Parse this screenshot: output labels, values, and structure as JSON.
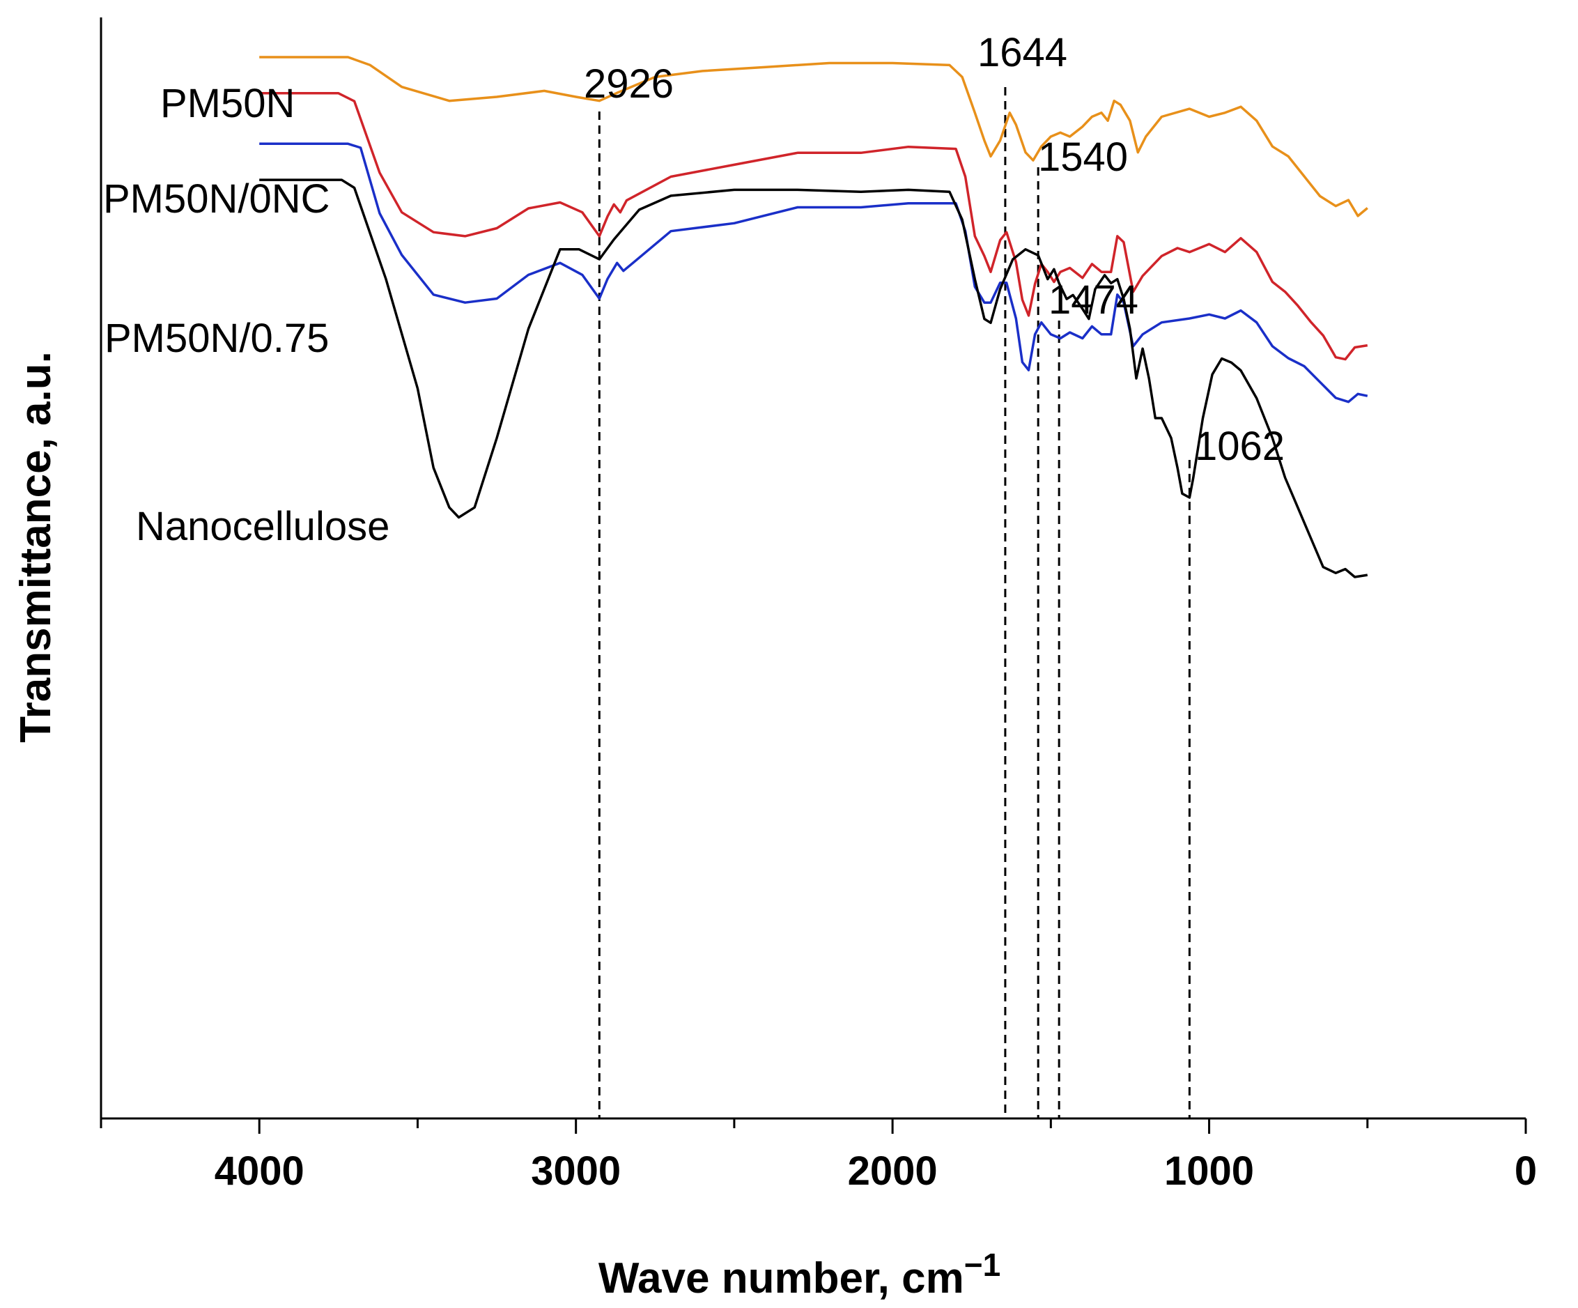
{
  "chart_data": {
    "type": "line",
    "title": "",
    "xlabel": "Wave number, cm",
    "xlabel_superscript": "−1",
    "ylabel": "Transmittance, a.u.",
    "xlim": [
      4500,
      0
    ],
    "x_ticks": [
      4000,
      3000,
      2000,
      1000,
      0
    ],
    "y_tick_labels": false,
    "grid": false,
    "reference_lines": [
      {
        "wavenumber": 2926,
        "label": "2926"
      },
      {
        "wavenumber": 1644,
        "label": "1644"
      },
      {
        "wavenumber": 1540,
        "label": "1540"
      },
      {
        "wavenumber": 1474,
        "label": "1474"
      },
      {
        "wavenumber": 1062,
        "label": "1062"
      }
    ],
    "series": [
      {
        "name": "PM50N",
        "color": "#E8901A",
        "offset": 0.84,
        "points": [
          [
            4000,
            0.0
          ],
          [
            3720,
            0.0
          ],
          [
            3650,
            -0.04
          ],
          [
            3550,
            -0.15
          ],
          [
            3400,
            -0.22
          ],
          [
            3250,
            -0.2
          ],
          [
            3100,
            -0.17
          ],
          [
            3000,
            -0.2
          ],
          [
            2926,
            -0.22
          ],
          [
            2870,
            -0.18
          ],
          [
            2750,
            -0.1
          ],
          [
            2600,
            -0.07
          ],
          [
            2400,
            -0.05
          ],
          [
            2200,
            -0.03
          ],
          [
            2000,
            -0.03
          ],
          [
            1820,
            -0.04
          ],
          [
            1780,
            -0.1
          ],
          [
            1740,
            -0.28
          ],
          [
            1710,
            -0.42
          ],
          [
            1690,
            -0.5
          ],
          [
            1660,
            -0.42
          ],
          [
            1630,
            -0.28
          ],
          [
            1610,
            -0.34
          ],
          [
            1580,
            -0.48
          ],
          [
            1556,
            -0.52
          ],
          [
            1530,
            -0.45
          ],
          [
            1500,
            -0.4
          ],
          [
            1470,
            -0.38
          ],
          [
            1440,
            -0.4
          ],
          [
            1400,
            -0.35
          ],
          [
            1370,
            -0.3
          ],
          [
            1340,
            -0.28
          ],
          [
            1320,
            -0.32
          ],
          [
            1300,
            -0.22
          ],
          [
            1280,
            -0.24
          ],
          [
            1250,
            -0.32
          ],
          [
            1225,
            -0.48
          ],
          [
            1200,
            -0.4
          ],
          [
            1150,
            -0.3
          ],
          [
            1062,
            -0.26
          ],
          [
            1000,
            -0.3
          ],
          [
            950,
            -0.28
          ],
          [
            900,
            -0.25
          ],
          [
            850,
            -0.32
          ],
          [
            800,
            -0.45
          ],
          [
            750,
            -0.5
          ],
          [
            700,
            -0.6
          ],
          [
            650,
            -0.7
          ],
          [
            600,
            -0.75
          ],
          [
            560,
            -0.72
          ],
          [
            530,
            -0.8
          ],
          [
            500,
            -0.76
          ]
        ]
      },
      {
        "name": "PM50N/0NC",
        "color": "#D0242A",
        "offset": 0.74,
        "points": [
          [
            4000,
            0.0
          ],
          [
            3750,
            0.0
          ],
          [
            3700,
            -0.04
          ],
          [
            3620,
            -0.4
          ],
          [
            3550,
            -0.6
          ],
          [
            3450,
            -0.7
          ],
          [
            3350,
            -0.72
          ],
          [
            3250,
            -0.68
          ],
          [
            3150,
            -0.58
          ],
          [
            3050,
            -0.55
          ],
          [
            2980,
            -0.6
          ],
          [
            2926,
            -0.72
          ],
          [
            2900,
            -0.62
          ],
          [
            2880,
            -0.56
          ],
          [
            2860,
            -0.6
          ],
          [
            2840,
            -0.54
          ],
          [
            2700,
            -0.42
          ],
          [
            2500,
            -0.36
          ],
          [
            2300,
            -0.3
          ],
          [
            2100,
            -0.3
          ],
          [
            1950,
            -0.27
          ],
          [
            1800,
            -0.28
          ],
          [
            1770,
            -0.42
          ],
          [
            1740,
            -0.72
          ],
          [
            1710,
            -0.82
          ],
          [
            1690,
            -0.9
          ],
          [
            1660,
            -0.74
          ],
          [
            1640,
            -0.7
          ],
          [
            1610,
            -0.85
          ],
          [
            1590,
            -1.04
          ],
          [
            1570,
            -1.12
          ],
          [
            1550,
            -0.96
          ],
          [
            1530,
            -0.86
          ],
          [
            1510,
            -0.9
          ],
          [
            1490,
            -0.95
          ],
          [
            1470,
            -0.9
          ],
          [
            1440,
            -0.88
          ],
          [
            1400,
            -0.93
          ],
          [
            1370,
            -0.86
          ],
          [
            1340,
            -0.9
          ],
          [
            1310,
            -0.9
          ],
          [
            1290,
            -0.72
          ],
          [
            1270,
            -0.75
          ],
          [
            1240,
            -1.0
          ],
          [
            1210,
            -0.92
          ],
          [
            1150,
            -0.82
          ],
          [
            1100,
            -0.78
          ],
          [
            1062,
            -0.8
          ],
          [
            1000,
            -0.76
          ],
          [
            950,
            -0.8
          ],
          [
            900,
            -0.73
          ],
          [
            850,
            -0.8
          ],
          [
            800,
            -0.95
          ],
          [
            760,
            -1.0
          ],
          [
            720,
            -1.07
          ],
          [
            680,
            -1.15
          ],
          [
            640,
            -1.22
          ],
          [
            600,
            -1.33
          ],
          [
            570,
            -1.34
          ],
          [
            540,
            -1.28
          ],
          [
            500,
            -1.27
          ]
        ]
      },
      {
        "name": "PM50N/0.75",
        "color": "#1A2FC8",
        "offset": 0.6,
        "points": [
          [
            4000,
            0.0
          ],
          [
            3800,
            0.0
          ],
          [
            3720,
            0.0
          ],
          [
            3680,
            -0.02
          ],
          [
            3620,
            -0.35
          ],
          [
            3550,
            -0.56
          ],
          [
            3450,
            -0.76
          ],
          [
            3350,
            -0.8
          ],
          [
            3250,
            -0.78
          ],
          [
            3150,
            -0.66
          ],
          [
            3050,
            -0.6
          ],
          [
            2980,
            -0.66
          ],
          [
            2926,
            -0.78
          ],
          [
            2900,
            -0.68
          ],
          [
            2870,
            -0.6
          ],
          [
            2850,
            -0.64
          ],
          [
            2820,
            -0.6
          ],
          [
            2700,
            -0.44
          ],
          [
            2500,
            -0.4
          ],
          [
            2300,
            -0.32
          ],
          [
            2100,
            -0.32
          ],
          [
            1950,
            -0.3
          ],
          [
            1800,
            -0.3
          ],
          [
            1770,
            -0.44
          ],
          [
            1740,
            -0.72
          ],
          [
            1710,
            -0.8
          ],
          [
            1690,
            -0.8
          ],
          [
            1660,
            -0.7
          ],
          [
            1640,
            -0.7
          ],
          [
            1610,
            -0.88
          ],
          [
            1590,
            -1.1
          ],
          [
            1570,
            -1.14
          ],
          [
            1550,
            -0.96
          ],
          [
            1530,
            -0.9
          ],
          [
            1500,
            -0.96
          ],
          [
            1470,
            -0.98
          ],
          [
            1440,
            -0.95
          ],
          [
            1400,
            -0.98
          ],
          [
            1370,
            -0.92
          ],
          [
            1340,
            -0.96
          ],
          [
            1310,
            -0.96
          ],
          [
            1290,
            -0.76
          ],
          [
            1270,
            -0.8
          ],
          [
            1240,
            -1.02
          ],
          [
            1210,
            -0.96
          ],
          [
            1150,
            -0.9
          ],
          [
            1062,
            -0.88
          ],
          [
            1000,
            -0.86
          ],
          [
            950,
            -0.88
          ],
          [
            900,
            -0.84
          ],
          [
            850,
            -0.9
          ],
          [
            800,
            -1.02
          ],
          [
            750,
            -1.08
          ],
          [
            700,
            -1.12
          ],
          [
            650,
            -1.2
          ],
          [
            600,
            -1.28
          ],
          [
            560,
            -1.3
          ],
          [
            530,
            -1.26
          ],
          [
            500,
            -1.27
          ]
        ]
      },
      {
        "name": "Nanocellulose",
        "color": "#000000",
        "offset": 0.5,
        "points": [
          [
            4000,
            0.0
          ],
          [
            3740,
            0.0
          ],
          [
            3700,
            -0.04
          ],
          [
            3600,
            -0.5
          ],
          [
            3500,
            -1.05
          ],
          [
            3450,
            -1.45
          ],
          [
            3400,
            -1.65
          ],
          [
            3370,
            -1.7
          ],
          [
            3320,
            -1.65
          ],
          [
            3250,
            -1.3
          ],
          [
            3150,
            -0.75
          ],
          [
            3050,
            -0.35
          ],
          [
            2990,
            -0.35
          ],
          [
            2926,
            -0.4
          ],
          [
            2880,
            -0.3
          ],
          [
            2800,
            -0.15
          ],
          [
            2700,
            -0.08
          ],
          [
            2500,
            -0.05
          ],
          [
            2300,
            -0.05
          ],
          [
            2100,
            -0.06
          ],
          [
            1950,
            -0.05
          ],
          [
            1820,
            -0.06
          ],
          [
            1780,
            -0.2
          ],
          [
            1740,
            -0.5
          ],
          [
            1710,
            -0.7
          ],
          [
            1690,
            -0.72
          ],
          [
            1660,
            -0.55
          ],
          [
            1620,
            -0.4
          ],
          [
            1580,
            -0.35
          ],
          [
            1540,
            -0.38
          ],
          [
            1510,
            -0.5
          ],
          [
            1490,
            -0.45
          ],
          [
            1474,
            -0.52
          ],
          [
            1450,
            -0.6
          ],
          [
            1430,
            -0.58
          ],
          [
            1400,
            -0.65
          ],
          [
            1380,
            -0.7
          ],
          [
            1360,
            -0.55
          ],
          [
            1330,
            -0.48
          ],
          [
            1310,
            -0.52
          ],
          [
            1290,
            -0.5
          ],
          [
            1270,
            -0.6
          ],
          [
            1250,
            -0.75
          ],
          [
            1230,
            -1.0
          ],
          [
            1210,
            -0.85
          ],
          [
            1190,
            -1.0
          ],
          [
            1170,
            -1.2
          ],
          [
            1150,
            -1.2
          ],
          [
            1120,
            -1.3
          ],
          [
            1100,
            -1.45
          ],
          [
            1085,
            -1.58
          ],
          [
            1062,
            -1.6
          ],
          [
            1050,
            -1.5
          ],
          [
            1020,
            -1.2
          ],
          [
            990,
            -0.98
          ],
          [
            960,
            -0.9
          ],
          [
            930,
            -0.92
          ],
          [
            900,
            -0.96
          ],
          [
            850,
            -1.1
          ],
          [
            800,
            -1.3
          ],
          [
            760,
            -1.5
          ],
          [
            720,
            -1.65
          ],
          [
            680,
            -1.8
          ],
          [
            640,
            -1.95
          ],
          [
            600,
            -1.98
          ],
          [
            570,
            -1.96
          ],
          [
            540,
            -2.0
          ],
          [
            500,
            -1.99
          ]
        ]
      }
    ]
  }
}
